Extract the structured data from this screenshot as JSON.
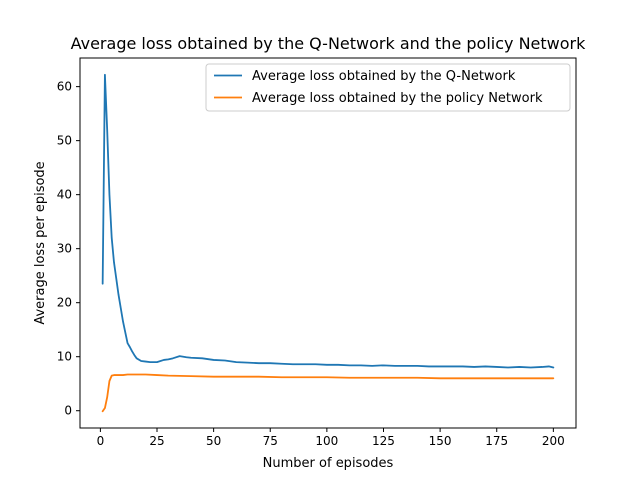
{
  "chart_data": {
    "type": "line",
    "title": "Average loss obtained by the Q-Network and the policy Network",
    "xlabel": "Number of episodes",
    "ylabel": "Average loss per episode",
    "xlim": [
      -9,
      210
    ],
    "ylim": [
      -3.2,
      65.3
    ],
    "xticks": [
      0,
      25,
      50,
      75,
      100,
      125,
      150,
      175,
      200
    ],
    "yticks": [
      0,
      10,
      20,
      30,
      40,
      50,
      60
    ],
    "grid": false,
    "legend_position": "upper right",
    "series": [
      {
        "name": "Average loss obtained by the Q-Network",
        "color": "#1f77b4",
        "x": [
          1,
          2,
          3,
          4,
          5,
          6,
          7,
          8,
          9,
          10,
          11,
          12,
          13,
          14,
          15,
          16,
          18,
          20,
          22,
          25,
          28,
          30,
          32,
          35,
          38,
          40,
          45,
          50,
          55,
          60,
          65,
          70,
          75,
          80,
          85,
          90,
          95,
          100,
          105,
          110,
          115,
          120,
          125,
          130,
          135,
          140,
          145,
          150,
          155,
          160,
          165,
          170,
          175,
          180,
          185,
          190,
          195,
          198,
          200
        ],
        "values": [
          23.5,
          62.2,
          52.0,
          40.0,
          32.0,
          27.5,
          24.5,
          21.5,
          19.0,
          16.5,
          14.5,
          12.5,
          11.8,
          11.0,
          10.3,
          9.7,
          9.2,
          9.1,
          9.0,
          9.0,
          9.4,
          9.5,
          9.7,
          10.1,
          9.9,
          9.8,
          9.7,
          9.4,
          9.3,
          9.0,
          8.9,
          8.8,
          8.8,
          8.7,
          8.6,
          8.6,
          8.6,
          8.5,
          8.5,
          8.4,
          8.4,
          8.3,
          8.4,
          8.3,
          8.3,
          8.3,
          8.2,
          8.2,
          8.2,
          8.2,
          8.1,
          8.2,
          8.1,
          8.0,
          8.1,
          8.0,
          8.1,
          8.2,
          8.0
        ]
      },
      {
        "name": "Average loss obtained by the policy Network",
        "color": "#ff7f0e",
        "x": [
          1,
          2,
          3,
          4,
          5,
          6,
          8,
          10,
          12,
          15,
          20,
          25,
          30,
          40,
          50,
          60,
          70,
          80,
          90,
          100,
          110,
          120,
          130,
          140,
          150,
          160,
          170,
          180,
          190,
          200
        ],
        "values": [
          -0.1,
          0.5,
          2.5,
          5.5,
          6.5,
          6.6,
          6.6,
          6.6,
          6.7,
          6.7,
          6.7,
          6.6,
          6.5,
          6.4,
          6.3,
          6.3,
          6.3,
          6.2,
          6.2,
          6.2,
          6.1,
          6.1,
          6.1,
          6.1,
          6.0,
          6.0,
          6.0,
          6.0,
          6.0,
          6.0
        ]
      }
    ]
  }
}
